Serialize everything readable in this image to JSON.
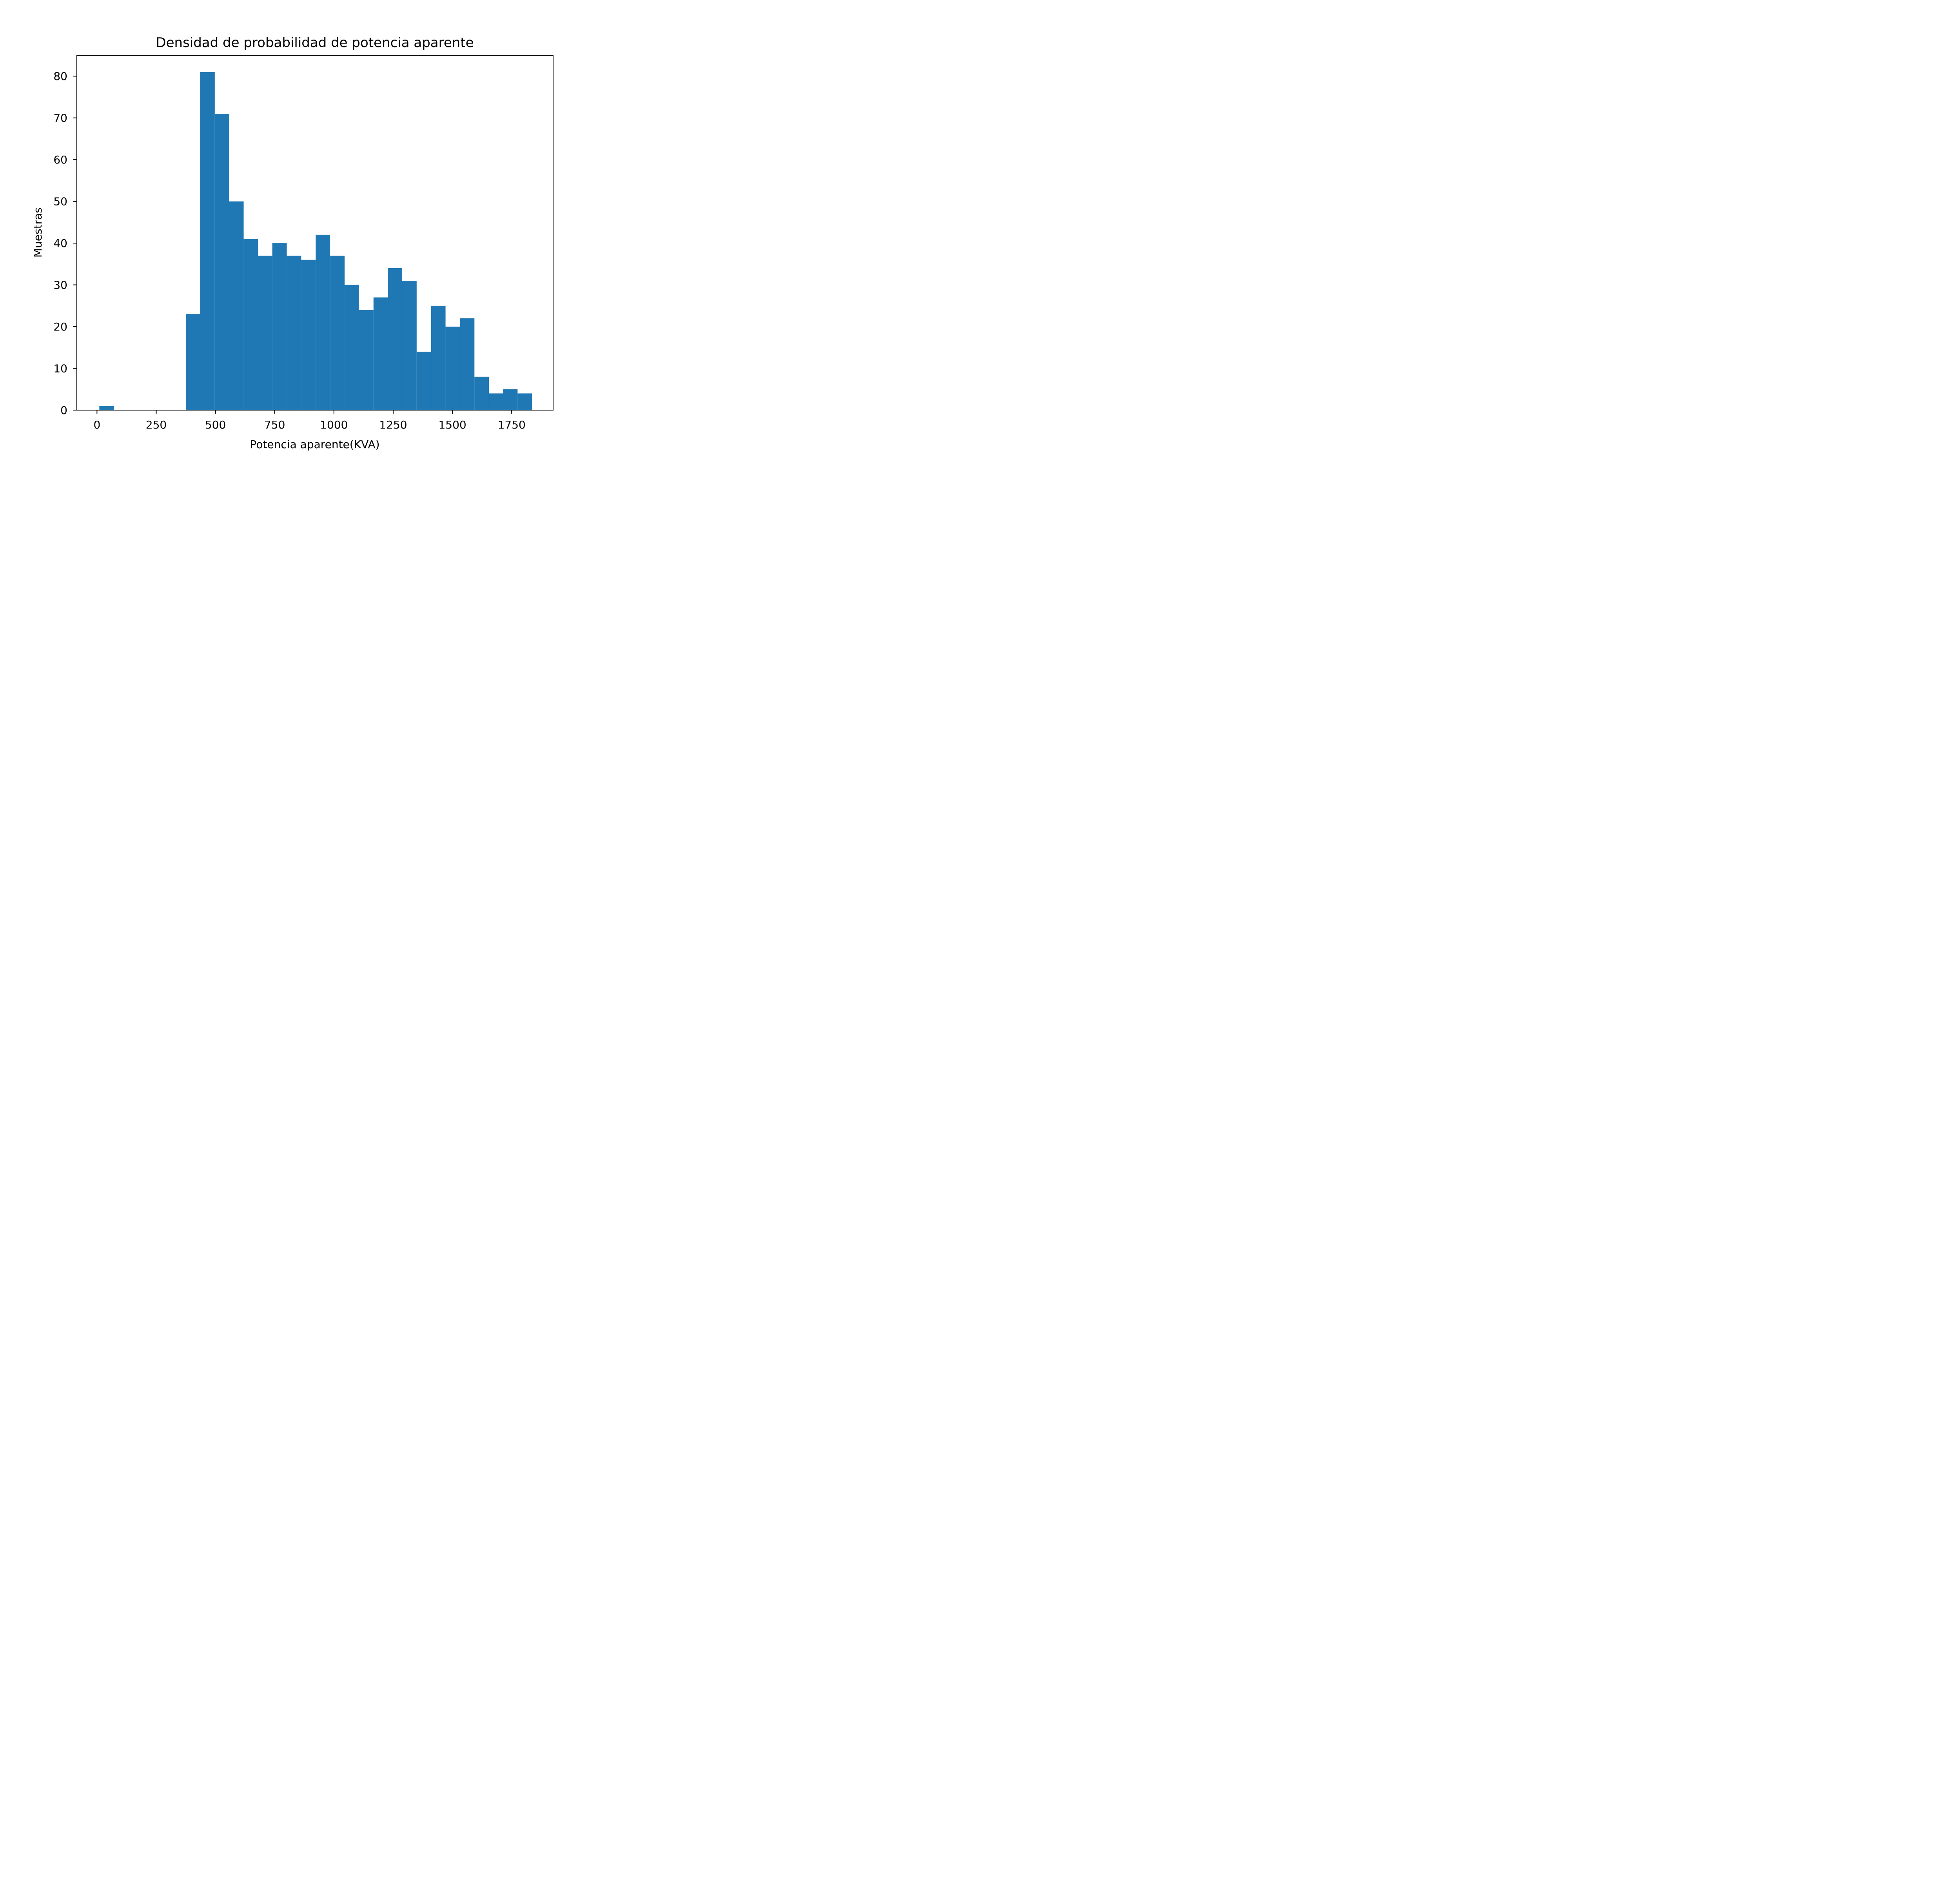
{
  "chart_data": {
    "type": "bar",
    "subtype": "histogram",
    "title": "Densidad de probabilidad de potencia aparente",
    "xlabel": "Potencia aparente(KVA)",
    "ylabel": "Muestras",
    "xlim": [
      -85,
      1925
    ],
    "ylim": [
      0,
      85
    ],
    "xticks": [
      0,
      250,
      500,
      750,
      1000,
      1250,
      1500,
      1750
    ],
    "yticks": [
      0,
      10,
      20,
      30,
      40,
      50,
      60,
      70,
      80
    ],
    "grid": false,
    "bar_color": "#1f77b4",
    "bins": [
      {
        "x0": 10,
        "x1": 71,
        "count": 1
      },
      {
        "x0": 71,
        "x1": 132,
        "count": 0
      },
      {
        "x0": 132,
        "x1": 192,
        "count": 0
      },
      {
        "x0": 192,
        "x1": 253,
        "count": 0
      },
      {
        "x0": 253,
        "x1": 314,
        "count": 0
      },
      {
        "x0": 314,
        "x1": 375,
        "count": 0
      },
      {
        "x0": 375,
        "x1": 436,
        "count": 23
      },
      {
        "x0": 436,
        "x1": 497,
        "count": 81
      },
      {
        "x0": 497,
        "x1": 558,
        "count": 71
      },
      {
        "x0": 558,
        "x1": 619,
        "count": 50
      },
      {
        "x0": 619,
        "x1": 680,
        "count": 41
      },
      {
        "x0": 680,
        "x1": 740,
        "count": 37
      },
      {
        "x0": 740,
        "x1": 801,
        "count": 40
      },
      {
        "x0": 801,
        "x1": 862,
        "count": 37
      },
      {
        "x0": 862,
        "x1": 923,
        "count": 36
      },
      {
        "x0": 923,
        "x1": 984,
        "count": 42
      },
      {
        "x0": 984,
        "x1": 1045,
        "count": 37
      },
      {
        "x0": 1045,
        "x1": 1106,
        "count": 30
      },
      {
        "x0": 1106,
        "x1": 1167,
        "count": 24
      },
      {
        "x0": 1167,
        "x1": 1227,
        "count": 27
      },
      {
        "x0": 1227,
        "x1": 1288,
        "count": 34
      },
      {
        "x0": 1288,
        "x1": 1349,
        "count": 31
      },
      {
        "x0": 1349,
        "x1": 1410,
        "count": 14
      },
      {
        "x0": 1410,
        "x1": 1471,
        "count": 25
      },
      {
        "x0": 1471,
        "x1": 1532,
        "count": 20
      },
      {
        "x0": 1532,
        "x1": 1593,
        "count": 22
      },
      {
        "x0": 1593,
        "x1": 1654,
        "count": 8
      },
      {
        "x0": 1654,
        "x1": 1714,
        "count": 4
      },
      {
        "x0": 1714,
        "x1": 1775,
        "count": 5
      },
      {
        "x0": 1775,
        "x1": 1836,
        "count": 4
      }
    ]
  }
}
